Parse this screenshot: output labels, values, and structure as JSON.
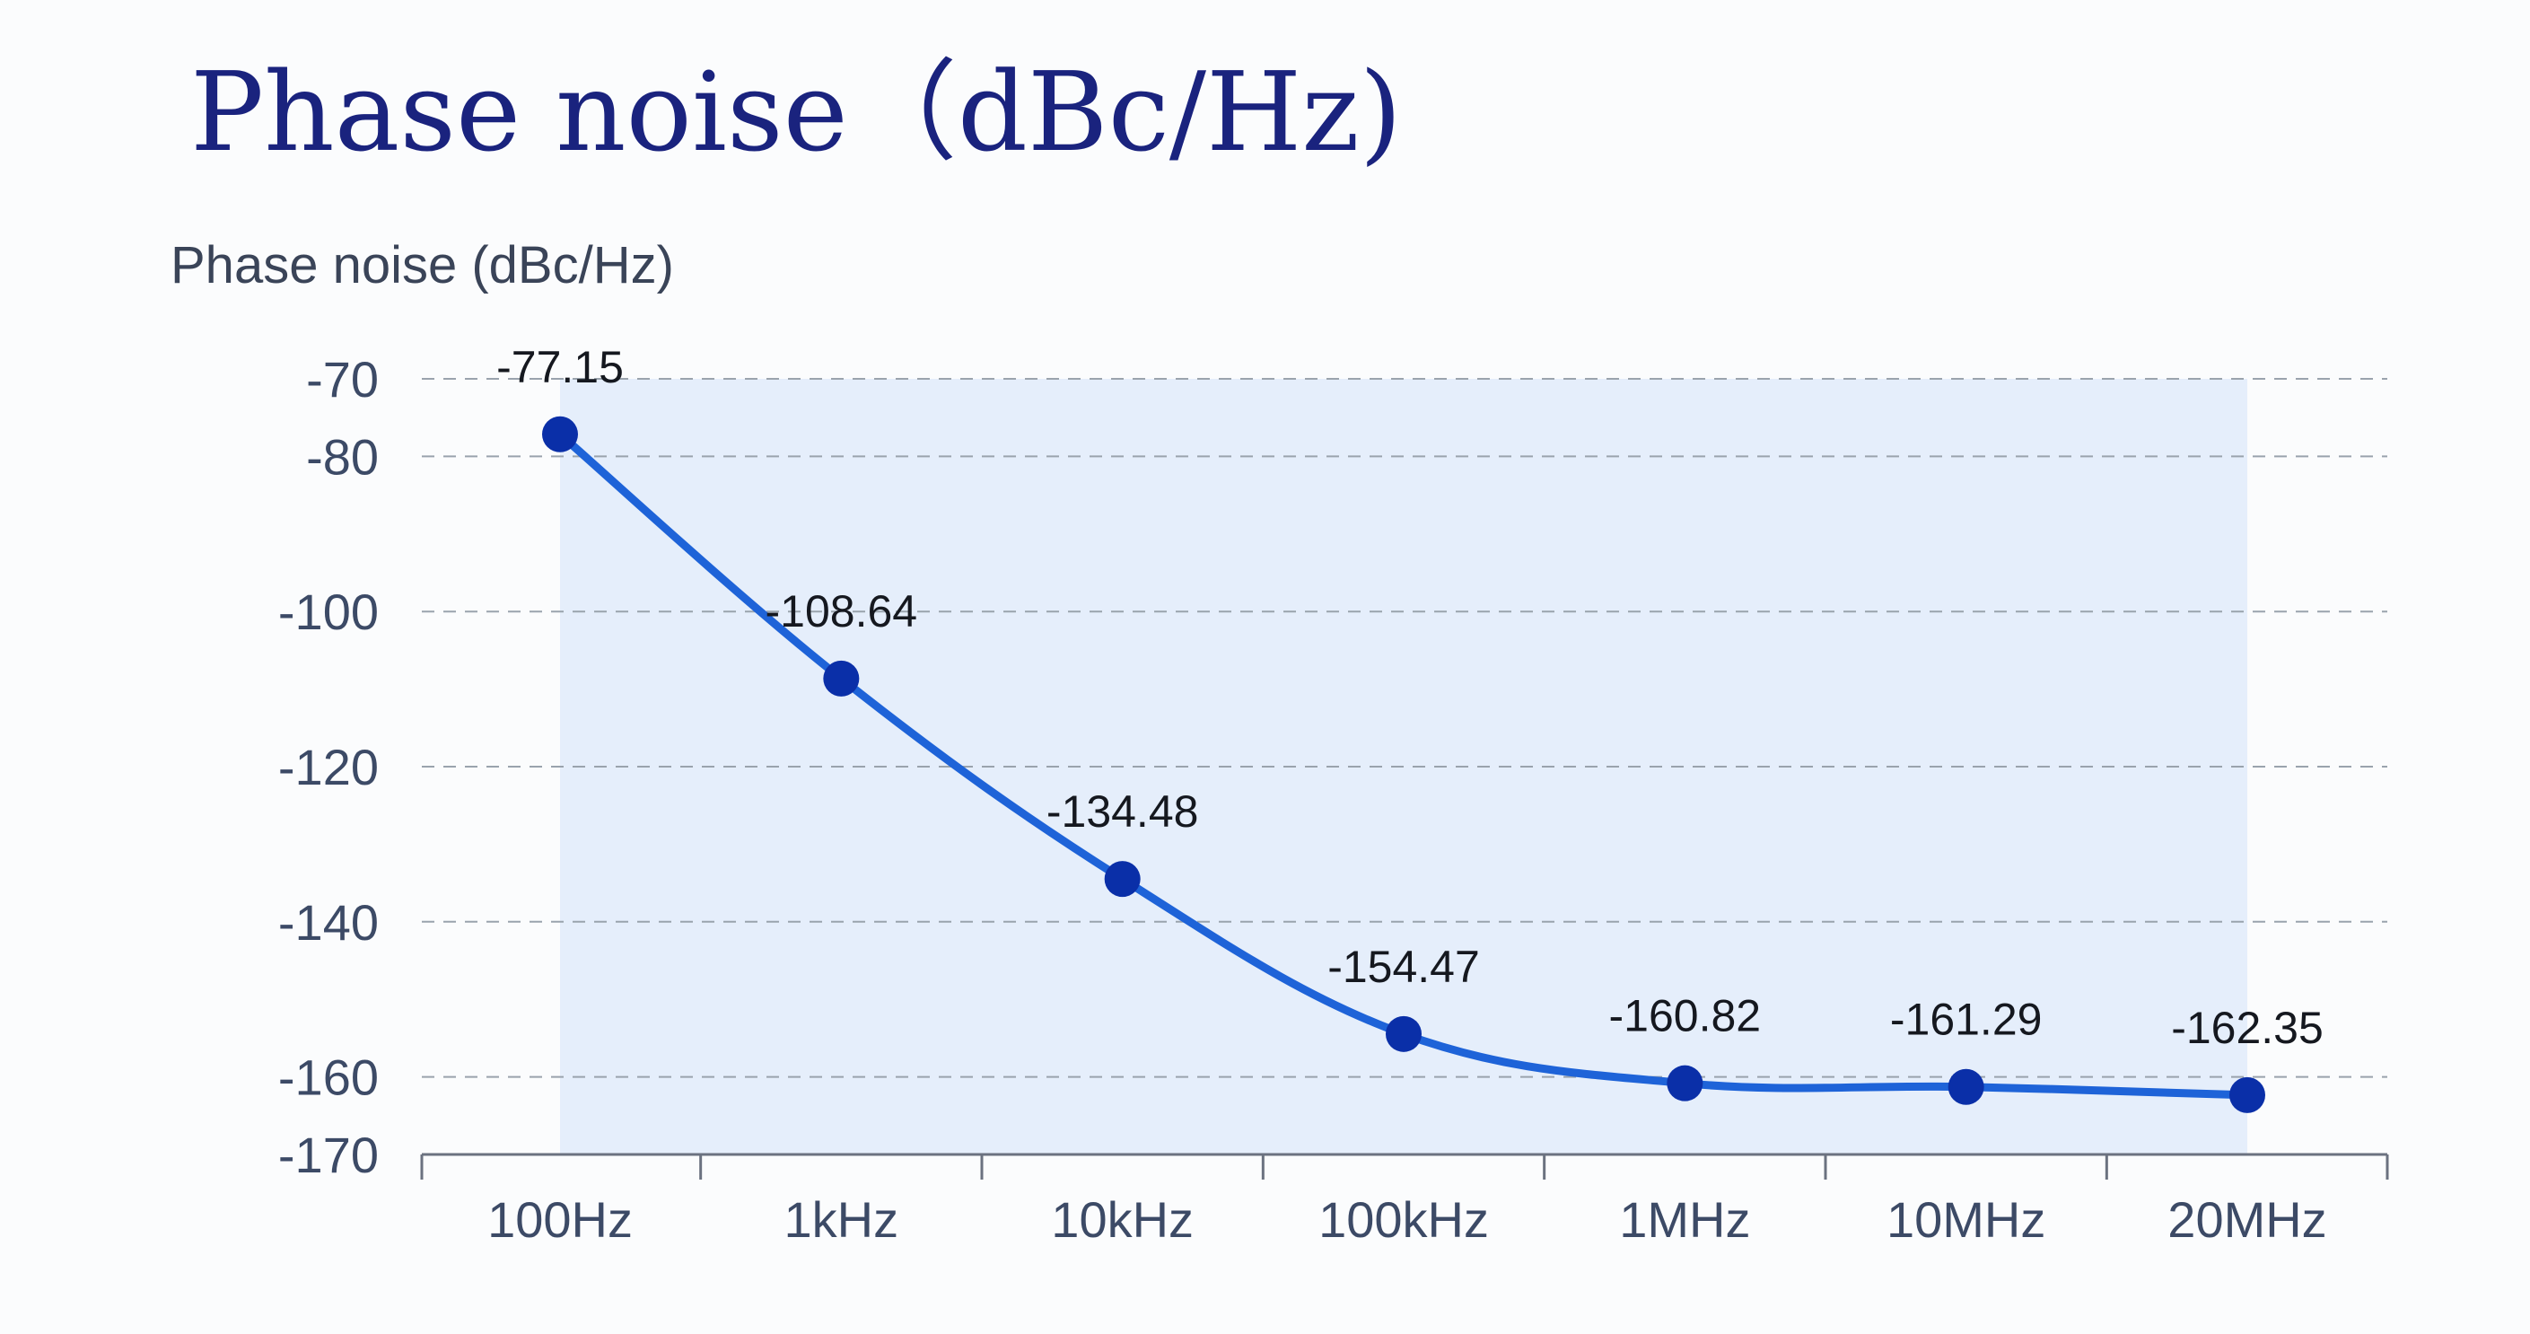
{
  "title": "Phase noise（dBc/Hz)",
  "chart_data": {
    "type": "line",
    "title": "Phase noise（dBc/Hz)",
    "xlabel": "",
    "ylabel": "Phase noise (dBc/Hz)",
    "categories": [
      "100Hz",
      "1kHz",
      "10kHz",
      "100kHz",
      "1MHz",
      "10MHz",
      "20MHz"
    ],
    "series": [
      {
        "values": [
          -77.15,
          -108.64,
          -134.48,
          -154.47,
          -160.82,
          -161.29,
          -162.35
        ],
        "data_labels": [
          "-77.15",
          "-108.64",
          "-134.48",
          "-154.47",
          "-160.82",
          "-161.29",
          "-162.35"
        ]
      }
    ],
    "y_ticks": [
      -70,
      -80,
      -100,
      -120,
      -140,
      -160,
      -170
    ],
    "y_tick_labels": [
      "-70",
      "-80",
      "-100",
      "-120",
      "-140",
      "-160",
      "-170"
    ],
    "ylim": [
      -170,
      -70
    ],
    "grid": true,
    "grid_style": "dashed",
    "shaded_area": true,
    "legend": "none"
  },
  "colors": {
    "title": "#1a237e",
    "line": "#1e63d8",
    "marker": "#0a2fa8",
    "fill": "#dde9fa",
    "grid": "#9aa3ad",
    "tick_text": "#3c4a66",
    "label_text": "#15181f",
    "axis": "#6b7280"
  }
}
